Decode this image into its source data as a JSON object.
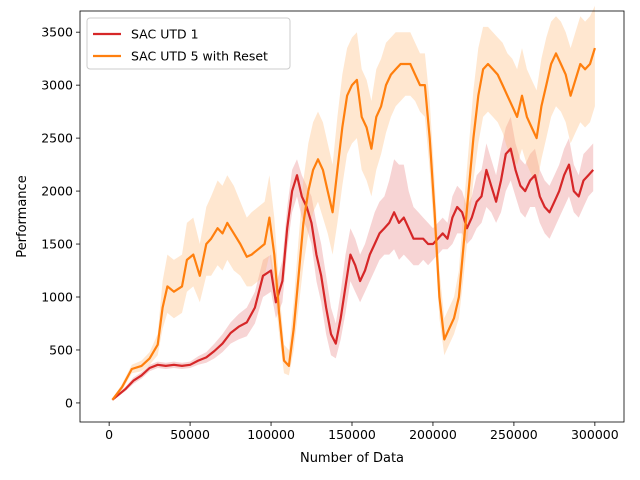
{
  "chart_data": {
    "type": "line",
    "title": "",
    "xlabel": "Number of Data",
    "ylabel": "Performance",
    "xlim": [
      -18000,
      318000
    ],
    "ylim": [
      -180,
      3700
    ],
    "xticks": [
      0,
      50000,
      100000,
      150000,
      200000,
      250000,
      300000
    ],
    "xtick_labels": [
      "0",
      "50000",
      "100000",
      "150000",
      "200000",
      "250000",
      "300000"
    ],
    "yticks": [
      0,
      500,
      1000,
      1500,
      2000,
      2500,
      3000,
      3500
    ],
    "ytick_labels": [
      "0",
      "500",
      "1000",
      "1500",
      "2000",
      "2500",
      "3000",
      "3500"
    ],
    "grid": false,
    "legend_position": "top-left",
    "series": [
      {
        "name": "SAC UTD 1",
        "color": "#d62728",
        "band_color": "#d62728",
        "x": [
          2000,
          10000,
          15000,
          20000,
          25000,
          30000,
          35000,
          40000,
          45000,
          50000,
          55000,
          60000,
          65000,
          70000,
          75000,
          80000,
          85000,
          90000,
          95000,
          100000,
          103000,
          107000,
          110000,
          113000,
          116000,
          119000,
          122000,
          125000,
          128000,
          131000,
          134000,
          137000,
          140000,
          143000,
          146000,
          149000,
          152000,
          155000,
          158000,
          161000,
          164000,
          167000,
          170000,
          173000,
          176000,
          179000,
          182000,
          185000,
          188000,
          191000,
          194000,
          197000,
          200000,
          203000,
          206000,
          209000,
          212000,
          215000,
          218000,
          221000,
          224000,
          227000,
          230000,
          233000,
          236000,
          239000,
          242000,
          245000,
          248000,
          251000,
          254000,
          257000,
          260000,
          263000,
          266000,
          269000,
          272000,
          275000,
          278000,
          281000,
          284000,
          287000,
          290000,
          293000,
          296000,
          299000
        ],
        "y": [
          30,
          130,
          210,
          260,
          330,
          360,
          350,
          360,
          350,
          360,
          400,
          430,
          490,
          560,
          660,
          720,
          760,
          900,
          1200,
          1250,
          950,
          1150,
          1650,
          2000,
          2150,
          1950,
          1850,
          1700,
          1400,
          1200,
          900,
          650,
          560,
          800,
          1100,
          1400,
          1300,
          1150,
          1250,
          1400,
          1500,
          1600,
          1650,
          1700,
          1800,
          1700,
          1750,
          1650,
          1550,
          1550,
          1550,
          1500,
          1500,
          1550,
          1600,
          1550,
          1750,
          1850,
          1800,
          1650,
          1750,
          1900,
          1950,
          2200,
          2050,
          1900,
          2100,
          2350,
          2400,
          2200,
          2050,
          2000,
          2100,
          2150,
          1950,
          1850,
          1800,
          1900,
          2000,
          2150,
          2250,
          2000,
          1950,
          2100,
          2150,
          2200
        ],
        "lower": [
          20,
          110,
          180,
          230,
          300,
          330,
          320,
          330,
          320,
          330,
          360,
          380,
          420,
          480,
          560,
          600,
          630,
          750,
          1000,
          1050,
          800,
          950,
          1450,
          1800,
          1950,
          1750,
          1650,
          1500,
          1150,
          950,
          650,
          450,
          420,
          600,
          850,
          1150,
          1050,
          950,
          1050,
          1150,
          1250,
          1350,
          1400,
          1400,
          1450,
          1350,
          1400,
          1350,
          1300,
          1300,
          1350,
          1300,
          1350,
          1400,
          1450,
          1450,
          1500,
          1600,
          1600,
          1500,
          1550,
          1650,
          1700,
          1850,
          1800,
          1700,
          1800,
          2000,
          2100,
          1950,
          1800,
          1750,
          1850,
          1850,
          1700,
          1600,
          1550,
          1650,
          1750,
          1850,
          1950,
          1800,
          1750,
          1850,
          1950,
          2000
        ],
        "upper": [
          40,
          150,
          240,
          290,
          360,
          390,
          380,
          390,
          380,
          390,
          440,
          480,
          560,
          650,
          760,
          840,
          900,
          1050,
          1350,
          1400,
          1100,
          1350,
          1850,
          2200,
          2300,
          2150,
          2050,
          1950,
          1700,
          1500,
          1200,
          900,
          750,
          1050,
          1400,
          1650,
          1550,
          1400,
          1500,
          1650,
          1800,
          1900,
          1950,
          2100,
          2300,
          2250,
          2250,
          2000,
          1850,
          1800,
          1750,
          1700,
          1650,
          1700,
          1750,
          1700,
          1950,
          2050,
          2000,
          1850,
          1950,
          2150,
          2200,
          2450,
          2300,
          2150,
          2400,
          2600,
          2700,
          2450,
          2300,
          2250,
          2350,
          2400,
          2200,
          2100,
          2050,
          2150,
          2250,
          2400,
          2500,
          2250,
          2150,
          2350,
          2400,
          2450
        ]
      },
      {
        "name": "SAC UTD 5 with Reset",
        "color": "#ff7f0e",
        "band_color": "#ffbb78",
        "x": [
          2000,
          8000,
          14000,
          20000,
          25000,
          30000,
          33000,
          36000,
          40000,
          45000,
          48000,
          52000,
          56000,
          60000,
          63000,
          67000,
          70000,
          73000,
          77000,
          81000,
          85000,
          88000,
          92000,
          96000,
          99000,
          102000,
          105000,
          108000,
          111000,
          114000,
          117000,
          120000,
          123000,
          126000,
          129000,
          132000,
          135000,
          138000,
          141000,
          144000,
          147000,
          150000,
          153000,
          156000,
          159000,
          162000,
          165000,
          168000,
          171000,
          174000,
          177000,
          180000,
          183000,
          186000,
          189000,
          192000,
          195000,
          198000,
          201000,
          204000,
          207000,
          210000,
          213000,
          216000,
          219000,
          222000,
          225000,
          228000,
          231000,
          234000,
          237000,
          240000,
          243000,
          246000,
          249000,
          252000,
          255000,
          258000,
          261000,
          264000,
          267000,
          270000,
          273000,
          276000,
          279000,
          282000,
          285000,
          288000,
          291000,
          294000,
          297000,
          300000
        ],
        "y": [
          30,
          150,
          320,
          350,
          420,
          550,
          900,
          1100,
          1050,
          1100,
          1350,
          1400,
          1200,
          1500,
          1550,
          1650,
          1600,
          1700,
          1600,
          1500,
          1380,
          1400,
          1450,
          1500,
          1750,
          1400,
          850,
          400,
          350,
          700,
          1200,
          1700,
          2000,
          2200,
          2300,
          2200,
          2000,
          1800,
          2200,
          2600,
          2900,
          3000,
          3050,
          2700,
          2600,
          2400,
          2700,
          2800,
          3000,
          3100,
          3150,
          3200,
          3200,
          3200,
          3100,
          3000,
          3000,
          2500,
          1800,
          1000,
          600,
          700,
          800,
          1000,
          1500,
          2000,
          2500,
          2900,
          3150,
          3200,
          3150,
          3100,
          3000,
          2900,
          2800,
          2700,
          2900,
          2700,
          2600,
          2500,
          2800,
          3000,
          3200,
          3300,
          3200,
          3100,
          2900,
          3050,
          3200,
          3150,
          3200,
          3350
        ],
        "lower": [
          20,
          120,
          280,
          300,
          360,
          450,
          700,
          850,
          800,
          850,
          1050,
          1100,
          950,
          1200,
          1200,
          1300,
          1250,
          1350,
          1250,
          1200,
          1100,
          1100,
          1150,
          1200,
          1400,
          1100,
          650,
          280,
          260,
          500,
          900,
          1300,
          1600,
          1800,
          1900,
          1750,
          1600,
          1400,
          1700,
          2050,
          2350,
          2450,
          2500,
          2200,
          2100,
          1950,
          2200,
          2350,
          2550,
          2700,
          2800,
          2850,
          2900,
          2900,
          2850,
          2750,
          2700,
          2200,
          1550,
          800,
          450,
          550,
          650,
          800,
          1200,
          1650,
          2100,
          2450,
          2700,
          2750,
          2700,
          2650,
          2550,
          2400,
          2300,
          2250,
          2400,
          2250,
          2150,
          2050,
          2300,
          2500,
          2700,
          2800,
          2750,
          2650,
          2450,
          2550,
          2650,
          2600,
          2650,
          2800
        ],
        "upper": [
          40,
          180,
          360,
          400,
          480,
          650,
          1150,
          1400,
          1350,
          1400,
          1700,
          1750,
          1500,
          1850,
          1950,
          2100,
          2050,
          2150,
          2050,
          1900,
          1750,
          1800,
          1850,
          1900,
          2150,
          1750,
          1100,
          550,
          500,
          950,
          1550,
          2100,
          2450,
          2650,
          2750,
          2650,
          2450,
          2250,
          2700,
          3100,
          3350,
          3450,
          3500,
          3150,
          3050,
          2850,
          3150,
          3250,
          3400,
          3450,
          3500,
          3500,
          3500,
          3500,
          3400,
          3300,
          3300,
          2850,
          2100,
          1250,
          800,
          900,
          1000,
          1250,
          1850,
          2400,
          2950,
          3350,
          3550,
          3550,
          3500,
          3450,
          3400,
          3300,
          3250,
          3150,
          3350,
          3150,
          3050,
          2950,
          3250,
          3450,
          3600,
          3650,
          3600,
          3500,
          3350,
          3500,
          3650,
          3600,
          3650,
          3750
        ]
      }
    ]
  }
}
